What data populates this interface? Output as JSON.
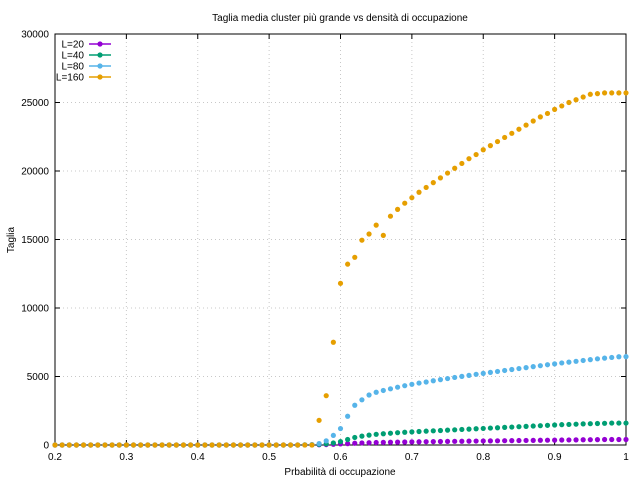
{
  "chart_data": {
    "type": "scatter",
    "title": "Taglia media cluster più grande vs densità di occupazione",
    "xlabel": "Prbabilità di occupazione",
    "ylabel": "Taglia",
    "xlim": [
      0.2,
      1.0
    ],
    "ylim": [
      0,
      30000
    ],
    "x_ticks": [
      "0.2",
      "0.3",
      "0.4",
      "0.5",
      "0.6",
      "0.7",
      "0.8",
      "0.9",
      "1"
    ],
    "y_ticks": [
      "0",
      "5000",
      "10000",
      "15000",
      "20000",
      "25000",
      "30000"
    ],
    "grid": true,
    "legend_position": "top-left",
    "series": [
      {
        "name": "L=20",
        "color": "#9400d3",
        "points": [
          [
            0.2,
            0
          ],
          [
            0.21,
            0
          ],
          [
            0.22,
            0
          ],
          [
            0.23,
            0
          ],
          [
            0.24,
            0
          ],
          [
            0.25,
            0
          ],
          [
            0.26,
            0
          ],
          [
            0.27,
            0
          ],
          [
            0.28,
            0
          ],
          [
            0.29,
            0
          ],
          [
            0.3,
            0
          ],
          [
            0.31,
            0
          ],
          [
            0.32,
            0
          ],
          [
            0.33,
            0
          ],
          [
            0.34,
            0
          ],
          [
            0.35,
            0
          ],
          [
            0.36,
            0
          ],
          [
            0.37,
            0
          ],
          [
            0.38,
            0
          ],
          [
            0.39,
            0
          ],
          [
            0.4,
            0
          ],
          [
            0.41,
            0
          ],
          [
            0.42,
            0
          ],
          [
            0.43,
            0
          ],
          [
            0.44,
            0
          ],
          [
            0.45,
            0
          ],
          [
            0.46,
            0
          ],
          [
            0.47,
            0
          ],
          [
            0.48,
            0
          ],
          [
            0.49,
            0
          ],
          [
            0.5,
            0
          ],
          [
            0.51,
            0
          ],
          [
            0.52,
            0
          ],
          [
            0.53,
            0
          ],
          [
            0.54,
            0
          ],
          [
            0.55,
            5
          ],
          [
            0.56,
            10
          ],
          [
            0.57,
            15
          ],
          [
            0.58,
            30
          ],
          [
            0.59,
            50
          ],
          [
            0.6,
            80
          ],
          [
            0.61,
            100
          ],
          [
            0.62,
            130
          ],
          [
            0.63,
            150
          ],
          [
            0.64,
            165
          ],
          [
            0.65,
            180
          ],
          [
            0.66,
            190
          ],
          [
            0.67,
            200
          ],
          [
            0.68,
            210
          ],
          [
            0.69,
            220
          ],
          [
            0.7,
            230
          ],
          [
            0.71,
            235
          ],
          [
            0.72,
            240
          ],
          [
            0.73,
            248
          ],
          [
            0.74,
            255
          ],
          [
            0.75,
            262
          ],
          [
            0.76,
            268
          ],
          [
            0.77,
            275
          ],
          [
            0.78,
            282
          ],
          [
            0.79,
            288
          ],
          [
            0.8,
            295
          ],
          [
            0.81,
            300
          ],
          [
            0.82,
            307
          ],
          [
            0.83,
            313
          ],
          [
            0.84,
            320
          ],
          [
            0.85,
            326
          ],
          [
            0.86,
            333
          ],
          [
            0.87,
            339
          ],
          [
            0.88,
            345
          ],
          [
            0.89,
            351
          ],
          [
            0.9,
            358
          ],
          [
            0.91,
            364
          ],
          [
            0.92,
            370
          ],
          [
            0.93,
            376
          ],
          [
            0.94,
            382
          ],
          [
            0.95,
            388
          ],
          [
            0.96,
            394
          ],
          [
            0.97,
            400
          ],
          [
            0.98,
            400
          ],
          [
            0.99,
            400
          ],
          [
            1.0,
            400
          ]
        ]
      },
      {
        "name": "L=40",
        "color": "#009e73",
        "points": [
          [
            0.2,
            0
          ],
          [
            0.21,
            0
          ],
          [
            0.22,
            0
          ],
          [
            0.23,
            0
          ],
          [
            0.24,
            0
          ],
          [
            0.25,
            0
          ],
          [
            0.26,
            0
          ],
          [
            0.27,
            0
          ],
          [
            0.28,
            0
          ],
          [
            0.29,
            0
          ],
          [
            0.3,
            0
          ],
          [
            0.31,
            0
          ],
          [
            0.32,
            0
          ],
          [
            0.33,
            0
          ],
          [
            0.34,
            0
          ],
          [
            0.35,
            0
          ],
          [
            0.36,
            0
          ],
          [
            0.37,
            0
          ],
          [
            0.38,
            0
          ],
          [
            0.39,
            0
          ],
          [
            0.4,
            0
          ],
          [
            0.41,
            0
          ],
          [
            0.42,
            0
          ],
          [
            0.43,
            0
          ],
          [
            0.44,
            0
          ],
          [
            0.45,
            0
          ],
          [
            0.46,
            0
          ],
          [
            0.47,
            0
          ],
          [
            0.48,
            0
          ],
          [
            0.49,
            0
          ],
          [
            0.5,
            0
          ],
          [
            0.51,
            0
          ],
          [
            0.52,
            0
          ],
          [
            0.53,
            0
          ],
          [
            0.54,
            0
          ],
          [
            0.55,
            10
          ],
          [
            0.56,
            20
          ],
          [
            0.57,
            40
          ],
          [
            0.58,
            80
          ],
          [
            0.59,
            150
          ],
          [
            0.6,
            250
          ],
          [
            0.61,
            400
          ],
          [
            0.62,
            550
          ],
          [
            0.63,
            650
          ],
          [
            0.64,
            720
          ],
          [
            0.65,
            780
          ],
          [
            0.66,
            820
          ],
          [
            0.67,
            860
          ],
          [
            0.68,
            900
          ],
          [
            0.69,
            930
          ],
          [
            0.7,
            960
          ],
          [
            0.71,
            985
          ],
          [
            0.72,
            1010
          ],
          [
            0.73,
            1035
          ],
          [
            0.74,
            1060
          ],
          [
            0.75,
            1085
          ],
          [
            0.76,
            1110
          ],
          [
            0.77,
            1135
          ],
          [
            0.78,
            1160
          ],
          [
            0.79,
            1185
          ],
          [
            0.8,
            1210
          ],
          [
            0.81,
            1235
          ],
          [
            0.82,
            1260
          ],
          [
            0.83,
            1285
          ],
          [
            0.84,
            1310
          ],
          [
            0.85,
            1335
          ],
          [
            0.86,
            1360
          ],
          [
            0.87,
            1385
          ],
          [
            0.88,
            1410
          ],
          [
            0.89,
            1435
          ],
          [
            0.9,
            1460
          ],
          [
            0.91,
            1485
          ],
          [
            0.92,
            1500
          ],
          [
            0.93,
            1520
          ],
          [
            0.94,
            1540
          ],
          [
            0.95,
            1555
          ],
          [
            0.96,
            1570
          ],
          [
            0.97,
            1585
          ],
          [
            0.98,
            1600
          ],
          [
            0.99,
            1600
          ],
          [
            1.0,
            1600
          ]
        ]
      },
      {
        "name": "L=80",
        "color": "#56b4e9",
        "points": [
          [
            0.2,
            0
          ],
          [
            0.21,
            0
          ],
          [
            0.22,
            0
          ],
          [
            0.23,
            0
          ],
          [
            0.24,
            0
          ],
          [
            0.25,
            0
          ],
          [
            0.26,
            0
          ],
          [
            0.27,
            0
          ],
          [
            0.28,
            0
          ],
          [
            0.29,
            0
          ],
          [
            0.3,
            0
          ],
          [
            0.31,
            0
          ],
          [
            0.32,
            0
          ],
          [
            0.33,
            0
          ],
          [
            0.34,
            0
          ],
          [
            0.35,
            0
          ],
          [
            0.36,
            0
          ],
          [
            0.37,
            0
          ],
          [
            0.38,
            0
          ],
          [
            0.39,
            0
          ],
          [
            0.4,
            0
          ],
          [
            0.41,
            0
          ],
          [
            0.42,
            0
          ],
          [
            0.43,
            0
          ],
          [
            0.44,
            0
          ],
          [
            0.45,
            0
          ],
          [
            0.46,
            0
          ],
          [
            0.47,
            0
          ],
          [
            0.48,
            0
          ],
          [
            0.49,
            0
          ],
          [
            0.5,
            0
          ],
          [
            0.51,
            0
          ],
          [
            0.52,
            0
          ],
          [
            0.53,
            0
          ],
          [
            0.54,
            0
          ],
          [
            0.55,
            10
          ],
          [
            0.56,
            30
          ],
          [
            0.57,
            100
          ],
          [
            0.58,
            300
          ],
          [
            0.59,
            700
          ],
          [
            0.6,
            1200
          ],
          [
            0.61,
            2100
          ],
          [
            0.62,
            2900
          ],
          [
            0.63,
            3300
          ],
          [
            0.64,
            3650
          ],
          [
            0.65,
            3850
          ],
          [
            0.66,
            3980
          ],
          [
            0.67,
            4100
          ],
          [
            0.68,
            4220
          ],
          [
            0.69,
            4330
          ],
          [
            0.7,
            4430
          ],
          [
            0.71,
            4520
          ],
          [
            0.72,
            4600
          ],
          [
            0.73,
            4690
          ],
          [
            0.74,
            4770
          ],
          [
            0.75,
            4850
          ],
          [
            0.76,
            4930
          ],
          [
            0.77,
            5010
          ],
          [
            0.78,
            5080
          ],
          [
            0.79,
            5160
          ],
          [
            0.8,
            5230
          ],
          [
            0.81,
            5300
          ],
          [
            0.82,
            5370
          ],
          [
            0.83,
            5440
          ],
          [
            0.84,
            5510
          ],
          [
            0.85,
            5580
          ],
          [
            0.86,
            5650
          ],
          [
            0.87,
            5720
          ],
          [
            0.88,
            5790
          ],
          [
            0.89,
            5860
          ],
          [
            0.9,
            5920
          ],
          [
            0.91,
            5990
          ],
          [
            0.92,
            6050
          ],
          [
            0.93,
            6110
          ],
          [
            0.94,
            6170
          ],
          [
            0.95,
            6230
          ],
          [
            0.96,
            6290
          ],
          [
            0.97,
            6340
          ],
          [
            0.98,
            6390
          ],
          [
            0.99,
            6440
          ],
          [
            1.0,
            6450
          ]
        ]
      },
      {
        "name": "L=160",
        "color": "#e69f00",
        "points": [
          [
            0.2,
            0
          ],
          [
            0.21,
            0
          ],
          [
            0.22,
            0
          ],
          [
            0.23,
            0
          ],
          [
            0.24,
            0
          ],
          [
            0.25,
            0
          ],
          [
            0.26,
            0
          ],
          [
            0.27,
            0
          ],
          [
            0.28,
            0
          ],
          [
            0.29,
            0
          ],
          [
            0.3,
            0
          ],
          [
            0.31,
            0
          ],
          [
            0.32,
            0
          ],
          [
            0.33,
            0
          ],
          [
            0.34,
            0
          ],
          [
            0.35,
            0
          ],
          [
            0.36,
            0
          ],
          [
            0.37,
            0
          ],
          [
            0.38,
            0
          ],
          [
            0.39,
            0
          ],
          [
            0.4,
            0
          ],
          [
            0.41,
            0
          ],
          [
            0.42,
            0
          ],
          [
            0.43,
            0
          ],
          [
            0.44,
            0
          ],
          [
            0.45,
            0
          ],
          [
            0.46,
            0
          ],
          [
            0.47,
            0
          ],
          [
            0.48,
            0
          ],
          [
            0.49,
            0
          ],
          [
            0.5,
            0
          ],
          [
            0.51,
            0
          ],
          [
            0.52,
            0
          ],
          [
            0.53,
            0
          ],
          [
            0.54,
            0
          ],
          [
            0.55,
            0
          ],
          [
            0.56,
            0
          ],
          [
            0.57,
            1800
          ],
          [
            0.58,
            3600
          ],
          [
            0.59,
            7500
          ],
          [
            0.6,
            11800
          ],
          [
            0.61,
            13200
          ],
          [
            0.62,
            13700
          ],
          [
            0.63,
            14950
          ],
          [
            0.64,
            15400
          ],
          [
            0.65,
            16050
          ],
          [
            0.66,
            15300
          ],
          [
            0.67,
            16700
          ],
          [
            0.68,
            17200
          ],
          [
            0.69,
            17650
          ],
          [
            0.7,
            18050
          ],
          [
            0.71,
            18450
          ],
          [
            0.72,
            18800
          ],
          [
            0.73,
            19150
          ],
          [
            0.74,
            19500
          ],
          [
            0.75,
            19850
          ],
          [
            0.76,
            20200
          ],
          [
            0.77,
            20550
          ],
          [
            0.78,
            20900
          ],
          [
            0.79,
            21200
          ],
          [
            0.8,
            21550
          ],
          [
            0.81,
            21850
          ],
          [
            0.82,
            22150
          ],
          [
            0.83,
            22450
          ],
          [
            0.84,
            22750
          ],
          [
            0.85,
            23050
          ],
          [
            0.86,
            23350
          ],
          [
            0.87,
            23650
          ],
          [
            0.88,
            23950
          ],
          [
            0.89,
            24200
          ],
          [
            0.9,
            24500
          ],
          [
            0.91,
            24750
          ],
          [
            0.92,
            25000
          ],
          [
            0.93,
            25200
          ],
          [
            0.94,
            25400
          ],
          [
            0.95,
            25600
          ],
          [
            0.96,
            25650
          ],
          [
            0.97,
            25700
          ],
          [
            0.98,
            25700
          ],
          [
            0.99,
            25700
          ],
          [
            1.0,
            25700
          ]
        ]
      }
    ]
  }
}
